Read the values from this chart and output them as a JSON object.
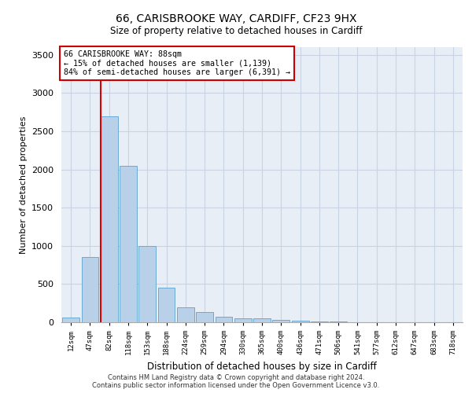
{
  "title1": "66, CARISBROOKE WAY, CARDIFF, CF23 9HX",
  "title2": "Size of property relative to detached houses in Cardiff",
  "xlabel": "Distribution of detached houses by size in Cardiff",
  "ylabel": "Number of detached properties",
  "bar_color": "#b8d0e8",
  "bar_edge_color": "#6aaad4",
  "categories": [
    "12sqm",
    "47sqm",
    "82sqm",
    "118sqm",
    "153sqm",
    "188sqm",
    "224sqm",
    "259sqm",
    "294sqm",
    "330sqm",
    "365sqm",
    "400sqm",
    "436sqm",
    "471sqm",
    "506sqm",
    "541sqm",
    "577sqm",
    "612sqm",
    "647sqm",
    "683sqm",
    "718sqm"
  ],
  "values": [
    60,
    850,
    2700,
    2050,
    1000,
    450,
    200,
    130,
    75,
    55,
    50,
    30,
    25,
    15,
    10,
    5,
    3,
    2,
    1,
    1,
    0
  ],
  "ylim": [
    0,
    3600
  ],
  "yticks": [
    0,
    500,
    1000,
    1500,
    2000,
    2500,
    3000,
    3500
  ],
  "annotation_text": "66 CARISBROOKE WAY: 88sqm\n← 15% of detached houses are smaller (1,139)\n84% of semi-detached houses are larger (6,391) →",
  "vline_color": "#dd0000",
  "annotation_box_color": "#ffffff",
  "annotation_box_edge_color": "#cc0000",
  "footnote": "Contains HM Land Registry data © Crown copyright and database right 2024.\nContains public sector information licensed under the Open Government Licence v3.0.",
  "background_color": "#ffffff",
  "grid_color": "#c8d4e4",
  "plot_bg_color": "#e8eef6"
}
